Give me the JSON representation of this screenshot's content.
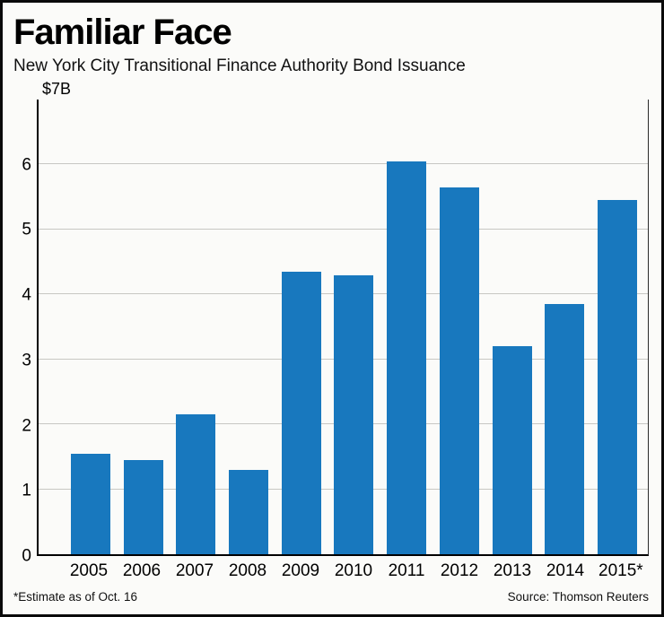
{
  "header": {
    "title": "Familiar Face",
    "subtitle": "New York City Transitional Finance Authority Bond Issuance"
  },
  "footer": {
    "footnote": "*Estimate as of Oct. 16",
    "source": "Source: Thomson Reuters"
  },
  "colors": {
    "bar": "#1878be",
    "grid": "#c7c7c3",
    "axis": "#000000",
    "background": "#fbfbf9"
  },
  "chart_data": {
    "type": "bar",
    "title": "Familiar Face",
    "subtitle": "New York City Transitional Finance Authority Bond Issuance",
    "categories": [
      "2005",
      "2006",
      "2007",
      "2008",
      "2009",
      "2010",
      "2011",
      "2012",
      "2013",
      "2014",
      "2015*"
    ],
    "values": [
      1.55,
      1.45,
      2.15,
      1.3,
      4.35,
      4.3,
      6.05,
      5.65,
      3.2,
      3.85,
      5.45
    ],
    "unit": "billions USD",
    "y_top_label": "$7B",
    "xlabel": "",
    "ylabel": "$7B",
    "ylim": [
      0,
      7
    ],
    "yticks": [
      0,
      1,
      2,
      3,
      4,
      5,
      6
    ],
    "grid": true,
    "legend": "none",
    "bar_color": "#1878be"
  }
}
